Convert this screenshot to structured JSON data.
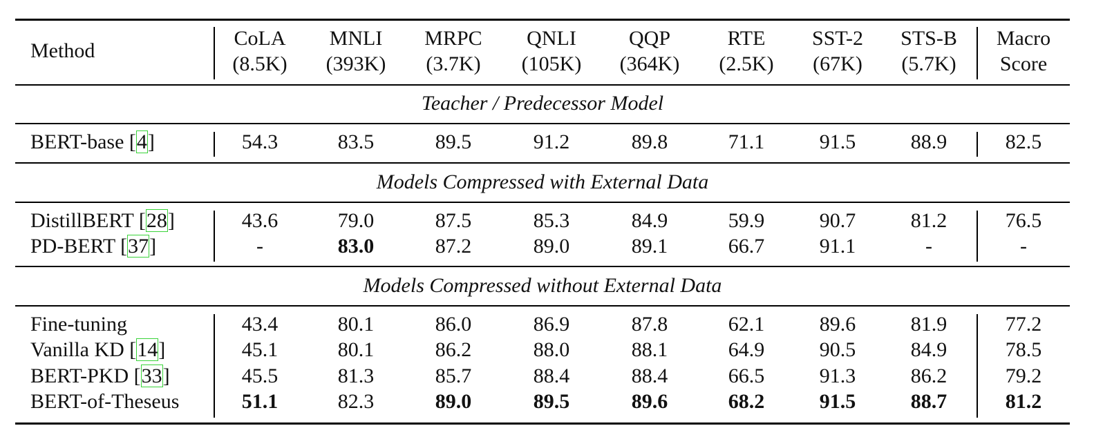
{
  "table": {
    "columns": [
      {
        "line1": "Method",
        "line2": ""
      },
      {
        "line1": "CoLA",
        "line2": "(8.5K)"
      },
      {
        "line1": "MNLI",
        "line2": "(393K)"
      },
      {
        "line1": "MRPC",
        "line2": "(3.7K)"
      },
      {
        "line1": "QNLI",
        "line2": "(105K)"
      },
      {
        "line1": "QQP",
        "line2": "(364K)"
      },
      {
        "line1": "RTE",
        "line2": "(2.5K)"
      },
      {
        "line1": "SST-2",
        "line2": "(67K)"
      },
      {
        "line1": "STS-B",
        "line2": "(5.7K)"
      },
      {
        "line1": "Macro",
        "line2": "Score"
      }
    ],
    "sections": [
      {
        "title": "Teacher / Predecessor Model",
        "rows": [
          {
            "method": "BERT-base [",
            "cite": "4",
            "cite_close": "]",
            "values": [
              "54.3",
              "83.5",
              "89.5",
              "91.2",
              "89.8",
              "71.1",
              "91.5",
              "88.9",
              "82.5"
            ],
            "bold": [
              false,
              false,
              false,
              false,
              false,
              false,
              false,
              false,
              false
            ]
          }
        ]
      },
      {
        "title": "Models Compressed with External Data",
        "rows": [
          {
            "method": "DistillBERT [",
            "cite": "28",
            "cite_close": "]",
            "values": [
              "43.6",
              "79.0",
              "87.5",
              "85.3",
              "84.9",
              "59.9",
              "90.7",
              "81.2",
              "76.5"
            ],
            "bold": [
              false,
              false,
              false,
              false,
              false,
              false,
              false,
              false,
              false
            ]
          },
          {
            "method": "PD-BERT [",
            "cite": "37",
            "cite_close": "]",
            "values": [
              "-",
              "83.0",
              "87.2",
              "89.0",
              "89.1",
              "66.7",
              "91.1",
              "-",
              "-"
            ],
            "bold": [
              false,
              true,
              false,
              false,
              false,
              false,
              false,
              false,
              false
            ]
          }
        ]
      },
      {
        "title": "Models Compressed without External Data",
        "rows": [
          {
            "method": "Fine-tuning",
            "cite": "",
            "cite_close": "",
            "values": [
              "43.4",
              "80.1",
              "86.0",
              "86.9",
              "87.8",
              "62.1",
              "89.6",
              "81.9",
              "77.2"
            ],
            "bold": [
              false,
              false,
              false,
              false,
              false,
              false,
              false,
              false,
              false
            ]
          },
          {
            "method": "Vanilla KD [",
            "cite": "14",
            "cite_close": "]",
            "values": [
              "45.1",
              "80.1",
              "86.2",
              "88.0",
              "88.1",
              "64.9",
              "90.5",
              "84.9",
              "78.5"
            ],
            "bold": [
              false,
              false,
              false,
              false,
              false,
              false,
              false,
              false,
              false
            ]
          },
          {
            "method": "BERT-PKD [",
            "cite": "33",
            "cite_close": "]",
            "values": [
              "45.5",
              "81.3",
              "85.7",
              "88.4",
              "88.4",
              "66.5",
              "91.3",
              "86.2",
              "79.2"
            ],
            "bold": [
              false,
              false,
              false,
              false,
              false,
              false,
              false,
              false,
              false
            ]
          },
          {
            "method": "BERT-of-Theseus",
            "cite": "",
            "cite_close": "",
            "values": [
              "51.1",
              "82.3",
              "89.0",
              "89.5",
              "89.6",
              "68.2",
              "91.5",
              "88.7",
              "81.2"
            ],
            "bold": [
              true,
              false,
              true,
              true,
              true,
              true,
              true,
              true,
              true
            ]
          }
        ]
      }
    ]
  }
}
